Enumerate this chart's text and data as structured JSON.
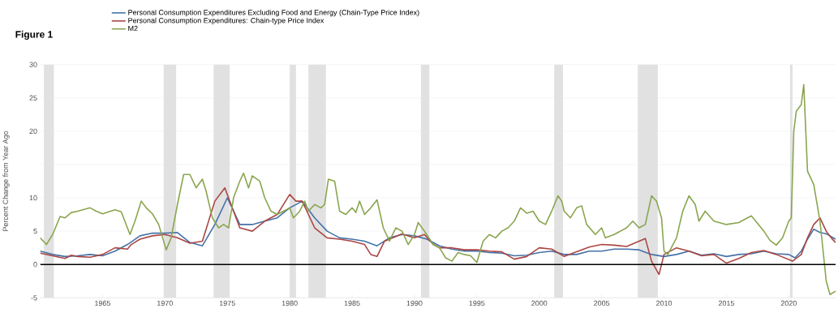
{
  "chart_data": {
    "type": "line",
    "title": "Figure 1",
    "ylabel": "Percent Change from Year Ago",
    "xlim": [
      1960,
      2023.75
    ],
    "xticks": [
      1965,
      1970,
      1975,
      1980,
      1985,
      1990,
      1995,
      2000,
      2005,
      2010,
      2015,
      2020
    ],
    "ylim": [
      -5,
      30
    ],
    "yticks": [
      -5,
      0,
      5,
      10,
      {
        "value": 15,
        "label": null
      },
      20,
      25,
      30
    ],
    "grid": "y",
    "legend": "top left",
    "line_style": "solid",
    "marker": "none",
    "ref_lines": [
      {
        "axis": "y",
        "value": 0,
        "color": "#000000"
      }
    ],
    "bands": [
      {
        "axis": "x",
        "from": 1960.3,
        "to": 1961.1,
        "color": "#e1e1e1"
      },
      {
        "axis": "x",
        "from": 1969.9,
        "to": 1970.9,
        "color": "#e1e1e1"
      },
      {
        "axis": "x",
        "from": 1973.9,
        "to": 1975.2,
        "color": "#e1e1e1"
      },
      {
        "axis": "x",
        "from": 1980.0,
        "to": 1980.5,
        "color": "#e1e1e1"
      },
      {
        "axis": "x",
        "from": 1981.5,
        "to": 1982.9,
        "color": "#e1e1e1"
      },
      {
        "axis": "x",
        "from": 1990.5,
        "to": 1991.2,
        "color": "#e1e1e1"
      },
      {
        "axis": "x",
        "from": 2001.2,
        "to": 2001.9,
        "color": "#e1e1e1"
      },
      {
        "axis": "x",
        "from": 2007.9,
        "to": 2009.5,
        "color": "#e1e1e1"
      },
      {
        "axis": "x",
        "from": 2020.1,
        "to": 2020.3,
        "color": "#e1e1e1"
      }
    ],
    "series": [
      {
        "name": "Personal Consumption Expenditures Excluding Food and Energy (Chain-Type Price Index)",
        "color": "#4572a7",
        "x": [
          1960,
          1961,
          1962,
          1963,
          1964,
          1965,
          1966,
          1967,
          1968,
          1969,
          1970,
          1971,
          1972,
          1973,
          1974,
          1975,
          1975.5,
          1976,
          1977,
          1978,
          1979,
          1980,
          1981,
          1982,
          1983,
          1984,
          1985,
          1986,
          1987,
          1988,
          1989,
          1990,
          1991,
          1992,
          1993,
          1994,
          1995,
          1996,
          1997,
          1998,
          1999,
          2000,
          2001,
          2002,
          2003,
          2004,
          2005,
          2006,
          2007,
          2008,
          2009,
          2010,
          2011,
          2012,
          2013,
          2014,
          2015,
          2016,
          2017,
          2018,
          2019,
          2020,
          2020.5,
          2021,
          2021.5,
          2022,
          2022.5,
          2023,
          2023.75
        ],
        "values": [
          2.0,
          1.5,
          1.2,
          1.3,
          1.5,
          1.3,
          2.0,
          3.0,
          4.3,
          4.7,
          4.7,
          4.8,
          3.3,
          2.8,
          6.0,
          10.0,
          8.0,
          6.0,
          6.0,
          6.5,
          7.0,
          8.5,
          9.5,
          7.0,
          5.0,
          4.0,
          3.8,
          3.5,
          2.8,
          4.0,
          4.5,
          4.3,
          3.8,
          2.8,
          2.3,
          2.0,
          2.0,
          1.8,
          1.7,
          1.3,
          1.4,
          1.8,
          2.0,
          1.5,
          1.5,
          2.0,
          2.0,
          2.3,
          2.3,
          2.2,
          1.5,
          1.2,
          1.5,
          2.0,
          1.4,
          1.6,
          1.2,
          1.5,
          1.6,
          2.0,
          1.6,
          1.5,
          1.0,
          2.0,
          3.8,
          5.3,
          4.8,
          4.6,
          3.8
        ]
      },
      {
        "name": "Personal Consumption Expenditures: Chain-type Price Index",
        "color": "#aa4643",
        "x": [
          1960,
          1961,
          1962,
          1962.5,
          1963,
          1964,
          1965,
          1966,
          1967,
          1967.3,
          1968,
          1969,
          1970,
          1971,
          1972,
          1973,
          1974,
          1974.8,
          1975.5,
          1976,
          1977,
          1978,
          1979,
          1980,
          1980.5,
          1981,
          1982,
          1983,
          1984,
          1985,
          1986,
          1986.5,
          1987,
          1987.6,
          1988,
          1989,
          1990,
          1990.8,
          1991.5,
          1992,
          1993,
          1994,
          1995,
          1996,
          1997,
          1998,
          1999,
          2000,
          2001,
          2002,
          2003,
          2004,
          2005,
          2006,
          2007,
          2008,
          2008.5,
          2009,
          2009.6,
          2010,
          2011,
          2012,
          2013,
          2014,
          2015,
          2016,
          2017,
          2018,
          2019,
          2020.3,
          2021,
          2021.5,
          2022,
          2022.5,
          2023,
          2023.4,
          2023.75
        ],
        "values": [
          1.7,
          1.3,
          0.9,
          1.4,
          1.2,
          1.1,
          1.5,
          2.5,
          2.3,
          3.0,
          3.8,
          4.3,
          4.5,
          4.0,
          3.2,
          3.5,
          9.5,
          11.5,
          8.0,
          5.5,
          5.0,
          6.5,
          7.5,
          10.5,
          9.5,
          9.5,
          5.5,
          4.0,
          3.8,
          3.5,
          3.0,
          1.5,
          1.2,
          3.5,
          3.8,
          4.6,
          4.0,
          4.5,
          3.0,
          2.5,
          2.5,
          2.2,
          2.2,
          2.0,
          1.9,
          0.8,
          1.2,
          2.5,
          2.3,
          1.2,
          1.9,
          2.6,
          3.0,
          2.9,
          2.7,
          3.5,
          3.9,
          0.5,
          -1.5,
          1.5,
          2.5,
          2.0,
          1.3,
          1.5,
          0.2,
          0.9,
          1.8,
          2.1,
          1.5,
          0.5,
          1.5,
          4.0,
          6.0,
          7.0,
          5.0,
          4.0,
          3.3
        ]
      },
      {
        "name": "M2",
        "color": "#89a54e",
        "x": [
          1960.0,
          1960.5,
          1961.0,
          1961.6,
          1962,
          1962.5,
          1963,
          1964,
          1964.5,
          1965,
          1966,
          1966.5,
          1967.2,
          1967.6,
          1968.1,
          1968.5,
          1969,
          1969.5,
          1970.1,
          1970.5,
          1971,
          1971.5,
          1972,
          1972.5,
          1973,
          1973.3,
          1973.8,
          1974.3,
          1974.7,
          1975.1,
          1975.5,
          1976,
          1976.3,
          1976.7,
          1977,
          1977.6,
          1978,
          1978.5,
          1979,
          1979.5,
          1980,
          1980.3,
          1980.8,
          1981.2,
          1981.5,
          1982,
          1982.5,
          1982.8,
          1983.1,
          1983.6,
          1984,
          1984.5,
          1985,
          1985.3,
          1985.6,
          1986,
          1986.5,
          1987,
          1987.5,
          1988,
          1988.5,
          1989,
          1989.5,
          1990,
          1990.3,
          1990.8,
          1991.5,
          1992,
          1992.5,
          1993,
          1993.5,
          1994,
          1994.5,
          1995,
          1995.5,
          1996,
          1996.5,
          1997,
          1997.5,
          1998,
          1998.5,
          1999,
          1999.5,
          2000,
          2000.5,
          2001,
          2001.5,
          2001.8,
          2002,
          2002.5,
          2003,
          2003.4,
          2003.8,
          2004.5,
          2005,
          2005.3,
          2006,
          2006.5,
          2007,
          2007.5,
          2008,
          2008.5,
          2009,
          2009.4,
          2009.8,
          2010.0,
          2010.3,
          2011,
          2011.5,
          2012,
          2012.5,
          2012.8,
          2013.3,
          2014,
          2015,
          2016,
          2016.5,
          2017,
          2018,
          2018.5,
          2019,
          2019.5,
          2020,
          2020.2,
          2020.4,
          2020.6,
          2021.0,
          2021.2,
          2021.5,
          2022,
          2022.5,
          2023,
          2023.3,
          2023.75
        ],
        "values": [
          4,
          3.0,
          4.5,
          7.2,
          7.0,
          7.8,
          8.0,
          8.5,
          8.0,
          7.6,
          8.2,
          7.9,
          4.5,
          6.5,
          9.5,
          8.5,
          7.6,
          6.0,
          2.2,
          4,
          9,
          13.5,
          13.5,
          11.5,
          12.8,
          11,
          7,
          5.5,
          6,
          5.5,
          10,
          12.5,
          13.7,
          11.5,
          13.3,
          12.5,
          10,
          8,
          7.5,
          8,
          8.5,
          7,
          8,
          9.5,
          8,
          9,
          8.5,
          9,
          12.8,
          12.5,
          8,
          7.5,
          8.5,
          7.8,
          9.5,
          7.5,
          8.5,
          9.7,
          5.5,
          3.5,
          5.5,
          5.0,
          3.0,
          4.5,
          6.3,
          5,
          3,
          2.5,
          1.0,
          0.5,
          1.8,
          1.5,
          1.3,
          0.3,
          3.5,
          4.5,
          4.0,
          5,
          5.5,
          6.5,
          8.5,
          7.7,
          8,
          6.5,
          6,
          8,
          10.3,
          9.5,
          8,
          7,
          8.5,
          8.8,
          6,
          4.5,
          5.5,
          4,
          4.5,
          5,
          5.5,
          6.5,
          5.5,
          6,
          10.3,
          9.5,
          7,
          2,
          1.5,
          4,
          8,
          10.3,
          9,
          6.5,
          8,
          6.5,
          6,
          6.3,
          6.8,
          7.3,
          5,
          3.6,
          2.9,
          4.0,
          6.5,
          7,
          20,
          23,
          24,
          27,
          14,
          12,
          6.5,
          -2.5,
          -4.5,
          -4
        ]
      }
    ]
  }
}
